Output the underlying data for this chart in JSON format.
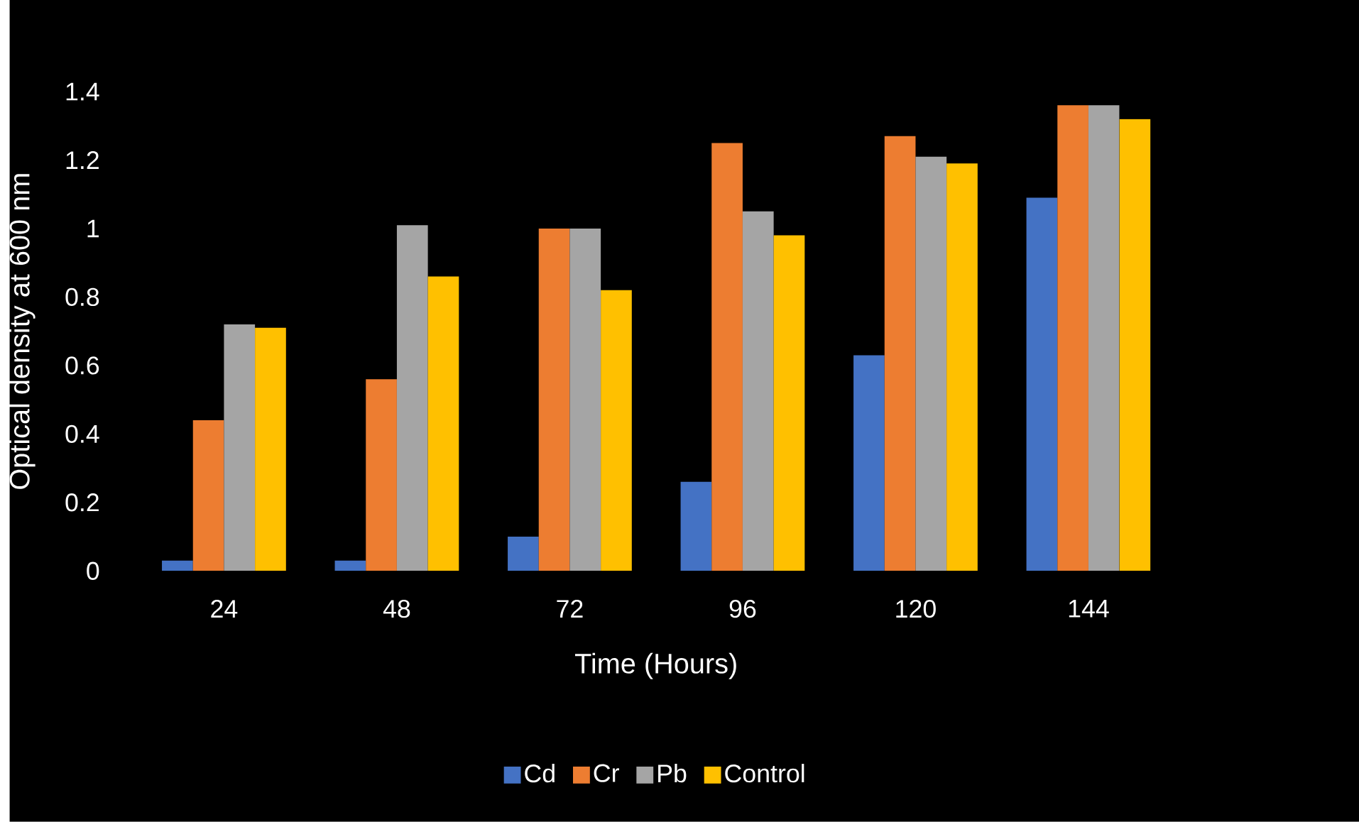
{
  "chart_data": {
    "type": "bar",
    "xlabel": "Time (Hours)",
    "ylabel": "Optical density at 600 nm",
    "categories": [
      "24",
      "48",
      "72",
      "96",
      "120",
      "144"
    ],
    "series": [
      {
        "name": "Cd",
        "color": "#4472c4",
        "values": [
          0.03,
          0.03,
          0.1,
          0.26,
          0.63,
          1.09
        ]
      },
      {
        "name": "Cr",
        "color": "#ed7d31",
        "values": [
          0.44,
          0.56,
          1.0,
          1.25,
          1.27,
          1.36
        ]
      },
      {
        "name": "Pb",
        "color": "#a5a5a5",
        "values": [
          0.72,
          1.01,
          1.0,
          1.05,
          1.21,
          1.36
        ]
      },
      {
        "name": "Control",
        "color": "#ffc000",
        "values": [
          0.71,
          0.86,
          0.82,
          0.98,
          1.19,
          1.32
        ]
      }
    ],
    "ylim": [
      0,
      1.4
    ],
    "yticks": [
      0,
      0.2,
      0.4,
      0.6,
      0.8,
      1,
      1.2,
      1.4
    ],
    "legend": "bottom"
  }
}
